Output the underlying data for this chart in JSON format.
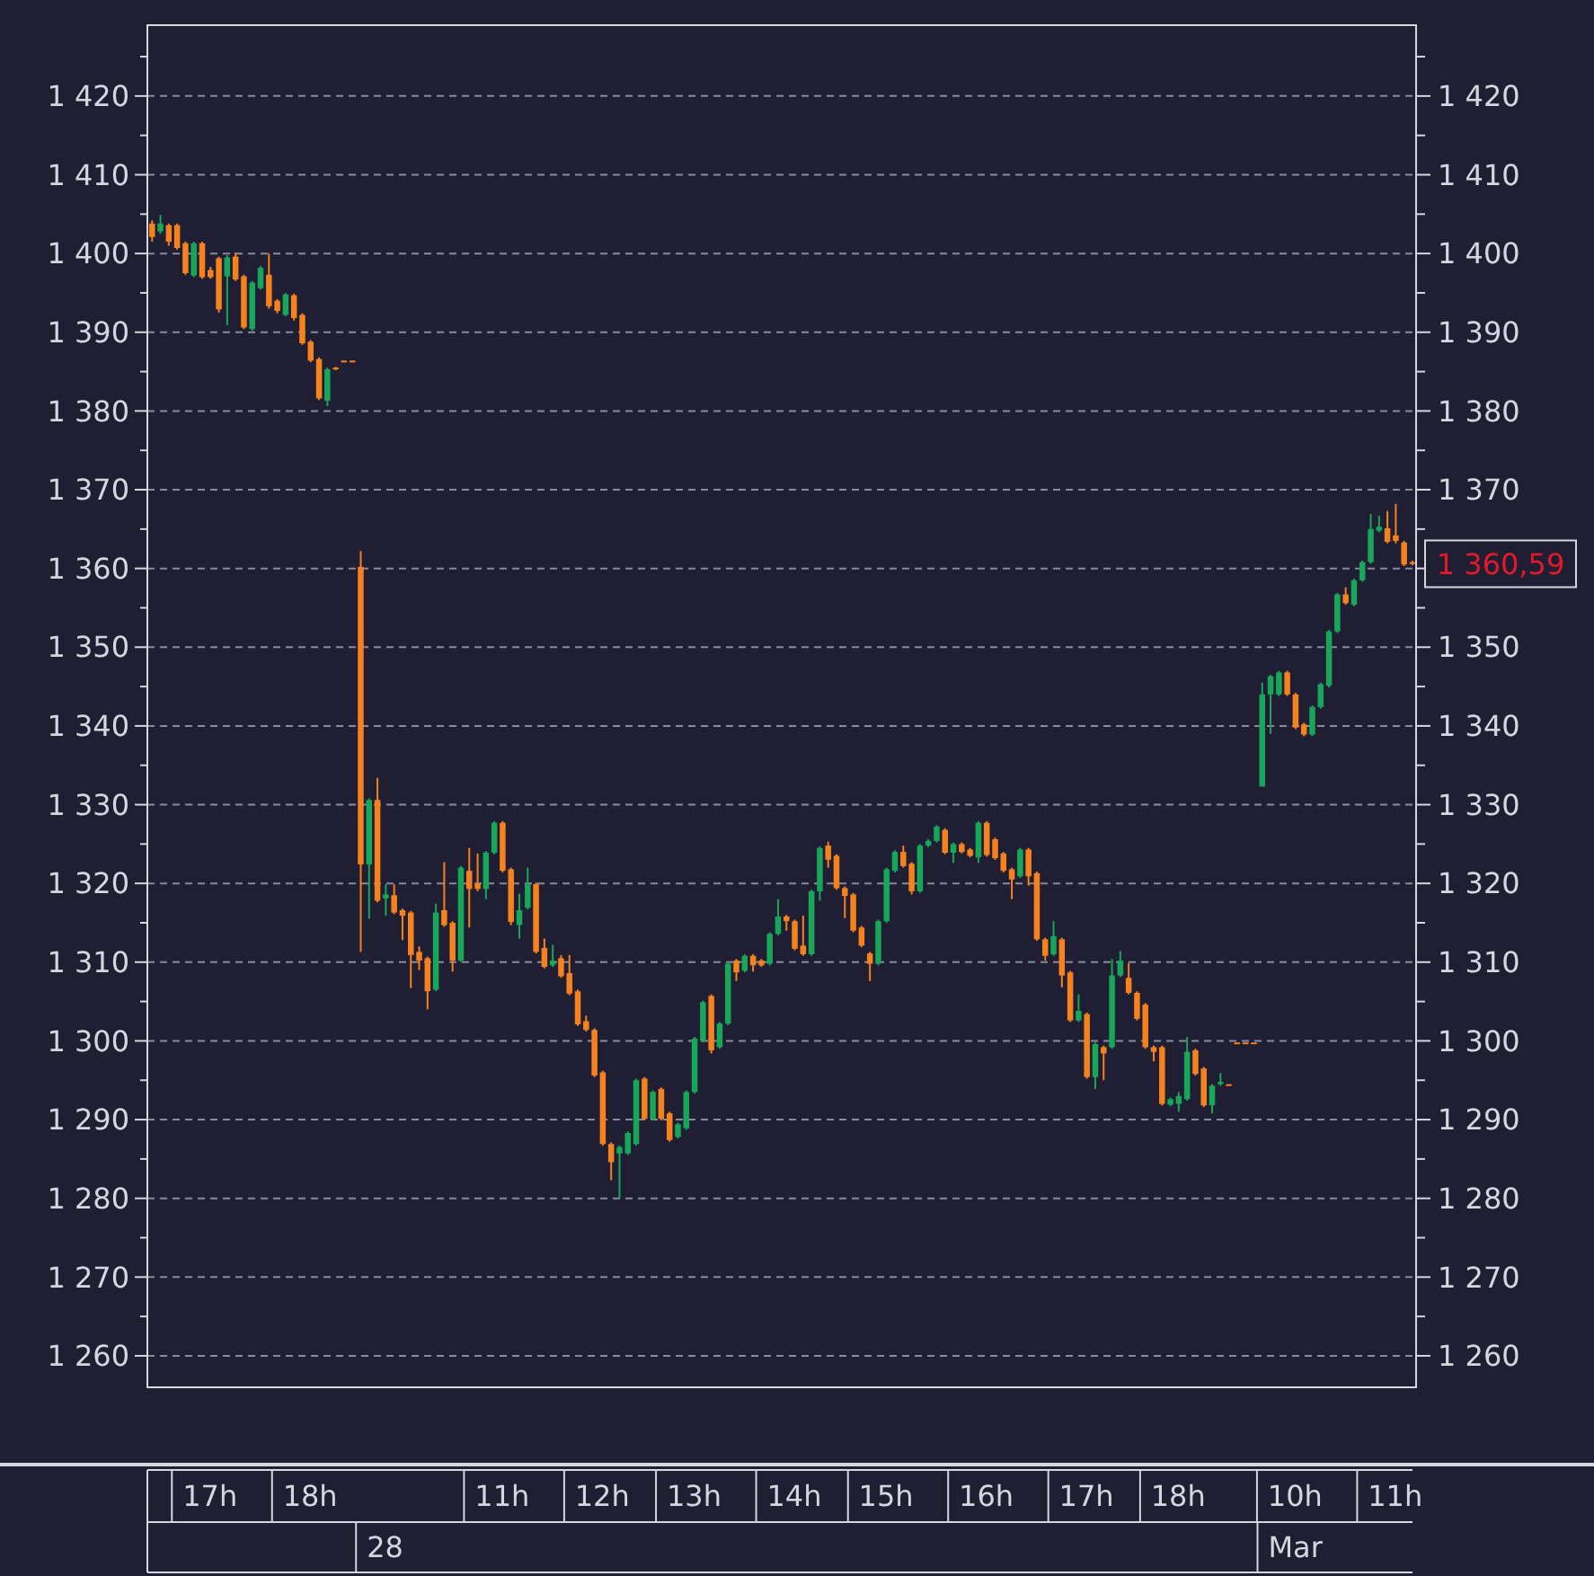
{
  "chart_data": {
    "type": "candlestick",
    "categories": [
      null,
      null,
      null,
      null,
      null,
      null,
      null,
      "17h",
      null,
      null,
      null,
      null,
      null,
      null,
      null,
      null,
      null,
      null,
      null,
      "18h",
      null,
      null,
      null,
      null,
      null,
      null,
      null,
      null,
      null,
      null,
      null,
      null,
      null,
      null,
      null,
      null,
      null,
      null,
      null,
      null,
      null,
      null,
      "11h",
      null,
      null,
      null,
      null,
      null,
      null,
      null,
      null,
      null,
      null,
      null,
      "12h",
      null,
      null,
      null,
      null,
      null,
      null,
      null,
      null,
      null,
      null,
      "13h",
      null,
      null,
      null,
      null,
      null,
      null,
      null,
      null,
      null,
      null,
      null,
      "14h",
      null,
      null,
      null,
      null,
      null,
      null,
      null,
      null,
      null,
      null,
      "15h",
      null,
      null,
      null,
      null,
      null,
      null,
      null,
      null,
      null,
      null,
      null,
      "16h",
      null,
      null,
      null,
      null,
      null,
      null,
      null,
      null,
      null,
      null,
      null,
      "17h",
      null,
      null,
      null,
      null,
      null,
      null,
      null,
      null,
      null,
      null,
      "18h",
      null,
      null,
      null,
      null,
      null,
      null,
      null,
      null,
      null,
      null,
      null,
      null,
      null,
      "10h",
      null,
      null,
      null,
      null,
      null,
      null,
      null,
      null,
      null,
      null,
      null,
      "11h",
      null,
      null
    ],
    "ohlc": [
      [
        1403.8,
        1404.2,
        1401.5,
        1402.1
      ],
      [
        1402.8,
        1404.9,
        1402.5,
        1403.8
      ],
      [
        1403.6,
        1403.8,
        1401.0,
        1401.5
      ],
      [
        1403.6,
        1403.8,
        1400.5,
        1400.7
      ],
      [
        1401.3,
        1401.5,
        1397.3,
        1397.5
      ],
      [
        1397.2,
        1401.5,
        1397.0,
        1401.3
      ],
      [
        1401.3,
        1401.5,
        1396.8,
        1397.0
      ],
      [
        1397.9,
        1398.3,
        1396.8,
        1397.0
      ],
      [
        1399.4,
        1399.6,
        1392.5,
        1392.9
      ],
      [
        1397.1,
        1399.8,
        1390.9,
        1399.5
      ],
      [
        1399.6,
        1400.1,
        1396.5,
        1396.7
      ],
      [
        1397.1,
        1397.3,
        1390.4,
        1390.6
      ],
      [
        1390.4,
        1396.5,
        1390.2,
        1396.3
      ],
      [
        1395.6,
        1398.4,
        1395.4,
        1398.2
      ],
      [
        1397.3,
        1400.0,
        1393.0,
        1393.3
      ],
      [
        1394.0,
        1394.2,
        1392.4,
        1392.7
      ],
      [
        1392.2,
        1395.0,
        1392.0,
        1394.8
      ],
      [
        1394.7,
        1394.9,
        1391.5,
        1391.8
      ],
      [
        1392.2,
        1392.4,
        1388.4,
        1388.6
      ],
      [
        1388.8,
        1389.0,
        1386.2,
        1386.4
      ],
      [
        1386.6,
        1386.8,
        1381.4,
        1381.6
      ],
      [
        1381.3,
        1385.5,
        1380.6,
        1385.3
      ],
      [
        1385.5,
        1385.6,
        1385.2,
        1385.3
      ],
      [
        1386.4,
        1386.4,
        1386.4,
        1386.4
      ],
      [
        1386.4,
        1386.4,
        1386.4,
        1386.4
      ],
      [
        1360.2,
        1362.2,
        1311.3,
        1322.4
      ],
      [
        1322.4,
        1330.8,
        1315.5,
        1330.6
      ],
      [
        1330.6,
        1333.4,
        1317.6,
        1317.8
      ],
      [
        1318.1,
        1319.9,
        1315.9,
        1318.6
      ],
      [
        1318.5,
        1319.9,
        1316.1,
        1316.3
      ],
      [
        1316.6,
        1316.8,
        1312.8,
        1315.9
      ],
      [
        1316.3,
        1316.5,
        1306.7,
        1310.9
      ],
      [
        1311.3,
        1312.0,
        1309.0,
        1310.2
      ],
      [
        1310.5,
        1310.7,
        1304.0,
        1306.3
      ],
      [
        1306.5,
        1317.4,
        1306.3,
        1316.3
      ],
      [
        1316.6,
        1322.7,
        1314.5,
        1314.7
      ],
      [
        1315.0,
        1315.2,
        1308.8,
        1310.2
      ],
      [
        1310.2,
        1322.2,
        1310.0,
        1322.0
      ],
      [
        1321.6,
        1324.5,
        1314.4,
        1319.3
      ],
      [
        1320.0,
        1323.8,
        1319.0,
        1319.3
      ],
      [
        1319.3,
        1324.1,
        1318.0,
        1323.9
      ],
      [
        1323.9,
        1327.9,
        1323.7,
        1327.7
      ],
      [
        1327.7,
        1327.9,
        1321.4,
        1321.6
      ],
      [
        1321.8,
        1322.0,
        1314.7,
        1315.1
      ],
      [
        1314.7,
        1318.7,
        1313.0,
        1316.6
      ],
      [
        1316.9,
        1322.0,
        1316.7,
        1319.9
      ],
      [
        1319.9,
        1320.1,
        1311.1,
        1311.3
      ],
      [
        1311.8,
        1313.0,
        1309.2,
        1309.4
      ],
      [
        1309.6,
        1312.2,
        1309.4,
        1310.2
      ],
      [
        1310.5,
        1310.9,
        1308.0,
        1308.2
      ],
      [
        1308.6,
        1310.9,
        1305.8,
        1306.0
      ],
      [
        1306.3,
        1306.5,
        1301.9,
        1302.1
      ],
      [
        1302.5,
        1303.2,
        1301.2,
        1301.4
      ],
      [
        1301.4,
        1301.6,
        1295.4,
        1295.6
      ],
      [
        1296.0,
        1296.2,
        1286.7,
        1286.9
      ],
      [
        1286.9,
        1287.1,
        1282.3,
        1284.6
      ],
      [
        1285.7,
        1286.7,
        1280.0,
        1286.5
      ],
      [
        1285.7,
        1288.5,
        1285.5,
        1288.3
      ],
      [
        1286.9,
        1295.2,
        1286.7,
        1295.0
      ],
      [
        1295.2,
        1295.4,
        1289.9,
        1290.1
      ],
      [
        1290.1,
        1293.7,
        1289.9,
        1293.5
      ],
      [
        1293.9,
        1294.1,
        1289.9,
        1290.1
      ],
      [
        1290.8,
        1291.0,
        1287.2,
        1287.4
      ],
      [
        1287.8,
        1289.6,
        1287.6,
        1289.4
      ],
      [
        1288.9,
        1293.7,
        1288.7,
        1293.5
      ],
      [
        1293.5,
        1300.5,
        1293.3,
        1300.3
      ],
      [
        1300.0,
        1305.1,
        1299.8,
        1304.9
      ],
      [
        1305.7,
        1305.9,
        1298.4,
        1298.8
      ],
      [
        1299.2,
        1302.4,
        1299.0,
        1302.2
      ],
      [
        1302.2,
        1310.0,
        1302.0,
        1309.8
      ],
      [
        1310.2,
        1310.4,
        1307.6,
        1308.7
      ],
      [
        1308.9,
        1311.0,
        1308.7,
        1310.8
      ],
      [
        1310.8,
        1311.0,
        1308.8,
        1309.6
      ],
      [
        1310.2,
        1310.4,
        1309.4,
        1309.6
      ],
      [
        1309.8,
        1313.8,
        1309.6,
        1313.6
      ],
      [
        1313.6,
        1318.0,
        1313.4,
        1315.8
      ],
      [
        1315.8,
        1316.0,
        1314.0,
        1315.2
      ],
      [
        1315.2,
        1315.4,
        1311.5,
        1311.7
      ],
      [
        1312.1,
        1315.9,
        1310.8,
        1311.0
      ],
      [
        1311.0,
        1319.2,
        1310.8,
        1319.0
      ],
      [
        1319.0,
        1324.7,
        1317.8,
        1324.5
      ],
      [
        1324.8,
        1325.3,
        1322.0,
        1323.0
      ],
      [
        1323.5,
        1323.7,
        1319.2,
        1319.4
      ],
      [
        1319.4,
        1319.6,
        1315.6,
        1318.4
      ],
      [
        1318.6,
        1318.8,
        1313.8,
        1314.0
      ],
      [
        1314.4,
        1314.6,
        1311.9,
        1312.1
      ],
      [
        1311.1,
        1311.3,
        1307.6,
        1309.8
      ],
      [
        1309.8,
        1315.4,
        1309.6,
        1315.2
      ],
      [
        1315.2,
        1322.0,
        1315.0,
        1321.8
      ],
      [
        1321.6,
        1324.2,
        1321.4,
        1324.0
      ],
      [
        1324.0,
        1324.8,
        1322.0,
        1322.2
      ],
      [
        1322.5,
        1322.7,
        1318.6,
        1319.0
      ],
      [
        1319.0,
        1325.0,
        1318.8,
        1324.8
      ],
      [
        1324.8,
        1325.6,
        1324.6,
        1325.4
      ],
      [
        1325.4,
        1327.4,
        1325.2,
        1327.2
      ],
      [
        1326.8,
        1327.0,
        1323.7,
        1323.9
      ],
      [
        1323.9,
        1325.2,
        1322.6,
        1325.0
      ],
      [
        1325.0,
        1325.2,
        1323.8,
        1324.0
      ],
      [
        1324.3,
        1324.5,
        1323.3,
        1323.5
      ],
      [
        1323.3,
        1327.9,
        1322.6,
        1327.7
      ],
      [
        1327.7,
        1327.9,
        1323.4,
        1323.6
      ],
      [
        1325.6,
        1325.8,
        1323.0,
        1323.2
      ],
      [
        1323.8,
        1324.0,
        1321.4,
        1321.6
      ],
      [
        1321.8,
        1322.0,
        1318.0,
        1320.5
      ],
      [
        1320.9,
        1324.5,
        1320.7,
        1324.3
      ],
      [
        1324.3,
        1324.5,
        1319.7,
        1320.9
      ],
      [
        1321.3,
        1321.5,
        1312.7,
        1312.9
      ],
      [
        1312.9,
        1313.1,
        1310.2,
        1310.8
      ],
      [
        1311.0,
        1315.2,
        1310.8,
        1313.3
      ],
      [
        1312.9,
        1313.1,
        1306.8,
        1308.3
      ],
      [
        1308.7,
        1308.9,
        1302.4,
        1302.6
      ],
      [
        1302.6,
        1305.9,
        1302.4,
        1303.8
      ],
      [
        1303.4,
        1303.6,
        1295.2,
        1295.4
      ],
      [
        1295.4,
        1299.8,
        1293.9,
        1299.6
      ],
      [
        1299.2,
        1299.4,
        1295.0,
        1298.4
      ],
      [
        1299.2,
        1310.4,
        1299.0,
        1308.3
      ],
      [
        1308.3,
        1311.4,
        1308.1,
        1310.2
      ],
      [
        1308.0,
        1309.9,
        1305.9,
        1306.1
      ],
      [
        1306.1,
        1306.3,
        1302.6,
        1302.8
      ],
      [
        1304.6,
        1304.8,
        1299.0,
        1299.2
      ],
      [
        1299.2,
        1299.4,
        1297.4,
        1298.6
      ],
      [
        1299.2,
        1299.4,
        1291.8,
        1292.0
      ],
      [
        1291.9,
        1292.8,
        1291.7,
        1292.6
      ],
      [
        1292.0,
        1293.5,
        1291.0,
        1293.0
      ],
      [
        1292.6,
        1300.5,
        1292.4,
        1298.6
      ],
      [
        1298.8,
        1299.0,
        1295.6,
        1295.8
      ],
      [
        1296.5,
        1296.7,
        1291.6,
        1291.8
      ],
      [
        1291.8,
        1294.5,
        1290.8,
        1294.3
      ],
      [
        1294.5,
        1295.9,
        1294.3,
        1294.8
      ],
      [
        1294.5,
        1294.5,
        1294.5,
        1294.5
      ],
      [
        1299.8,
        1299.8,
        1299.8,
        1299.8
      ],
      [
        1299.8,
        1299.8,
        1299.8,
        1299.8
      ],
      [
        1299.8,
        1299.8,
        1299.8,
        1299.8
      ],
      [
        1332.3,
        1345.5,
        1332.3,
        1344.0
      ],
      [
        1344.0,
        1346.5,
        1339.0,
        1346.3
      ],
      [
        1344.0,
        1347.0,
        1343.8,
        1346.8
      ],
      [
        1346.8,
        1347.0,
        1343.8,
        1344.0
      ],
      [
        1344.0,
        1344.2,
        1339.6,
        1339.8
      ],
      [
        1340.2,
        1340.4,
        1338.7,
        1338.9
      ],
      [
        1338.9,
        1342.6,
        1338.7,
        1342.4
      ],
      [
        1342.4,
        1345.5,
        1342.2,
        1345.3
      ],
      [
        1345.1,
        1352.2,
        1344.9,
        1352.0
      ],
      [
        1352.0,
        1356.9,
        1351.8,
        1356.7
      ],
      [
        1356.7,
        1357.6,
        1355.4,
        1355.6
      ],
      [
        1355.4,
        1358.7,
        1355.2,
        1358.5
      ],
      [
        1358.5,
        1361.0,
        1358.3,
        1360.8
      ],
      [
        1360.8,
        1366.9,
        1360.6,
        1365.0
      ],
      [
        1364.8,
        1366.7,
        1364.6,
        1365.3
      ],
      [
        1365.1,
        1367.3,
        1363.2,
        1363.4
      ],
      [
        1364.2,
        1368.2,
        1363.2,
        1363.5
      ],
      [
        1363.3,
        1363.5,
        1360.3,
        1360.5
      ],
      [
        1360.8,
        1361.0,
        1360.4,
        1360.59
      ]
    ],
    "colors": [
      "#f5821f",
      "#18a65b",
      "#f5821f",
      "#f5821f",
      "#f5821f",
      "#18a65b",
      "#f5821f",
      "#f5821f",
      "#f5821f",
      "#18a65b",
      "#f5821f",
      "#f5821f",
      "#18a65b",
      "#18a65b",
      "#f5821f",
      "#f5821f",
      "#18a65b",
      "#f5821f",
      "#f5821f",
      "#f5821f",
      "#f5821f",
      "#18a65b",
      "#f5821f",
      "#f5821f",
      "#f5821f",
      "#f5821f",
      "#18a65b",
      "#f5821f",
      "#18a65b",
      "#f5821f",
      "#f5821f",
      "#f5821f",
      "#f5821f",
      "#f5821f",
      "#18a65b",
      "#f5821f",
      "#f5821f",
      "#18a65b",
      "#f5821f",
      "#f5821f",
      "#18a65b",
      "#18a65b",
      "#f5821f",
      "#f5821f",
      "#18a65b",
      "#18a65b",
      "#f5821f",
      "#f5821f",
      "#18a65b",
      "#f5821f",
      "#f5821f",
      "#f5821f",
      "#f5821f",
      "#f5821f",
      "#f5821f",
      "#f5821f",
      "#18a65b",
      "#18a65b",
      "#18a65b",
      "#f5821f",
      "#18a65b",
      "#f5821f",
      "#f5821f",
      "#18a65b",
      "#18a65b",
      "#18a65b",
      "#18a65b",
      "#f5821f",
      "#18a65b",
      "#18a65b",
      "#f5821f",
      "#18a65b",
      "#f5821f",
      "#f5821f",
      "#18a65b",
      "#18a65b",
      "#f5821f",
      "#f5821f",
      "#f5821f",
      "#18a65b",
      "#18a65b",
      "#f5821f",
      "#f5821f",
      "#f5821f",
      "#f5821f",
      "#f5821f",
      "#f5821f",
      "#18a65b",
      "#18a65b",
      "#18a65b",
      "#f5821f",
      "#f5821f",
      "#18a65b",
      "#18a65b",
      "#18a65b",
      "#f5821f",
      "#18a65b",
      "#f5821f",
      "#f5821f",
      "#18a65b",
      "#f5821f",
      "#f5821f",
      "#f5821f",
      "#f5821f",
      "#18a65b",
      "#f5821f",
      "#f5821f",
      "#f5821f",
      "#18a65b",
      "#f5821f",
      "#f5821f",
      "#18a65b",
      "#f5821f",
      "#18a65b",
      "#f5821f",
      "#18a65b",
      "#18a65b",
      "#f5821f",
      "#f5821f",
      "#f5821f",
      "#f5821f",
      "#f5821f",
      "#18a65b",
      "#18a65b",
      "#18a65b",
      "#f5821f",
      "#f5821f",
      "#18a65b",
      "#18a65b",
      "#f5821f",
      "#f5821f",
      "#f5821f",
      "#f5821f",
      "#18a65b",
      "#18a65b",
      "#18a65b",
      "#f5821f",
      "#f5821f",
      "#f5821f",
      "#18a65b",
      "#18a65b",
      "#18a65b",
      "#18a65b",
      "#f5821f",
      "#18a65b",
      "#18a65b",
      "#18a65b",
      "#18a65b",
      "#f5821f",
      "#f5821f",
      "#f5821f",
      "#f5821f"
    ],
    "ylim": [
      1256,
      1429
    ],
    "yticks": [
      {
        "value": 1260,
        "label": "1 260"
      },
      {
        "value": 1265,
        "label": null
      },
      {
        "value": 1270,
        "label": "1 270"
      },
      {
        "value": 1275,
        "label": null
      },
      {
        "value": 1280,
        "label": "1 280"
      },
      {
        "value": 1285,
        "label": null
      },
      {
        "value": 1290,
        "label": "1 290"
      },
      {
        "value": 1295,
        "label": null
      },
      {
        "value": 1300,
        "label": "1 300"
      },
      {
        "value": 1305,
        "label": null
      },
      {
        "value": 1310,
        "label": "1 310"
      },
      {
        "value": 1315,
        "label": null
      },
      {
        "value": 1320,
        "label": "1 320"
      },
      {
        "value": 1325,
        "label": null
      },
      {
        "value": 1330,
        "label": "1 330"
      },
      {
        "value": 1335,
        "label": null
      },
      {
        "value": 1340,
        "label": "1 340"
      },
      {
        "value": 1345,
        "label": null
      },
      {
        "value": 1350,
        "label": "1 350"
      },
      {
        "value": 1355,
        "label": null
      },
      {
        "value": 1360,
        "label": "1 360"
      },
      {
        "value": 1365,
        "label": null
      },
      {
        "value": 1370,
        "label": "1 370"
      },
      {
        "value": 1375,
        "label": null
      },
      {
        "value": 1380,
        "label": "1 380"
      },
      {
        "value": 1385,
        "label": null
      },
      {
        "value": 1390,
        "label": "1 390"
      },
      {
        "value": 1395,
        "label": null
      },
      {
        "value": 1400,
        "label": "1 400"
      },
      {
        "value": 1405,
        "label": null
      },
      {
        "value": 1410,
        "label": "1 410"
      },
      {
        "value": 1415,
        "label": null
      },
      {
        "value": 1420,
        "label": "1 420"
      },
      {
        "value": 1425,
        "label": null
      }
    ],
    "y2lim": [
      1256,
      1429
    ],
    "y2ticks": [
      {
        "value": 1260,
        "label": "1 260"
      },
      {
        "value": 1265,
        "label": null
      },
      {
        "value": 1270,
        "label": "1 270"
      },
      {
        "value": 1275,
        "label": null
      },
      {
        "value": 1280,
        "label": "1 280"
      },
      {
        "value": 1285,
        "label": null
      },
      {
        "value": 1290,
        "label": "1 290"
      },
      {
        "value": 1295,
        "label": null
      },
      {
        "value": 1300,
        "label": "1 300"
      },
      {
        "value": 1305,
        "label": null
      },
      {
        "value": 1310,
        "label": "1 310"
      },
      {
        "value": 1315,
        "label": null
      },
      {
        "value": 1320,
        "label": "1 320"
      },
      {
        "value": 1325,
        "label": null
      },
      {
        "value": 1330,
        "label": "1 330"
      },
      {
        "value": 1335,
        "label": null
      },
      {
        "value": 1340,
        "label": "1 340"
      },
      {
        "value": 1345,
        "label": null
      },
      {
        "value": 1350,
        "label": "1 350"
      },
      {
        "value": 1355,
        "label": null
      },
      {
        "value": 1360,
        "label": null
      },
      {
        "value": 1365,
        "label": null
      },
      {
        "value": 1370,
        "label": "1 370"
      },
      {
        "value": 1375,
        "label": null
      },
      {
        "value": 1380,
        "label": "1 380"
      },
      {
        "value": 1385,
        "label": null
      },
      {
        "value": 1390,
        "label": "1 390"
      },
      {
        "value": 1395,
        "label": null
      },
      {
        "value": 1400,
        "label": "1 400"
      },
      {
        "value": 1405,
        "label": null
      },
      {
        "value": 1410,
        "label": "1 410"
      },
      {
        "value": 1415,
        "label": null
      },
      {
        "value": 1420,
        "label": "1 420"
      },
      {
        "value": 1425,
        "label": null
      }
    ],
    "grid": "y",
    "annotations": [
      "28",
      "Mar",
      "1 360,59"
    ]
  }
}
